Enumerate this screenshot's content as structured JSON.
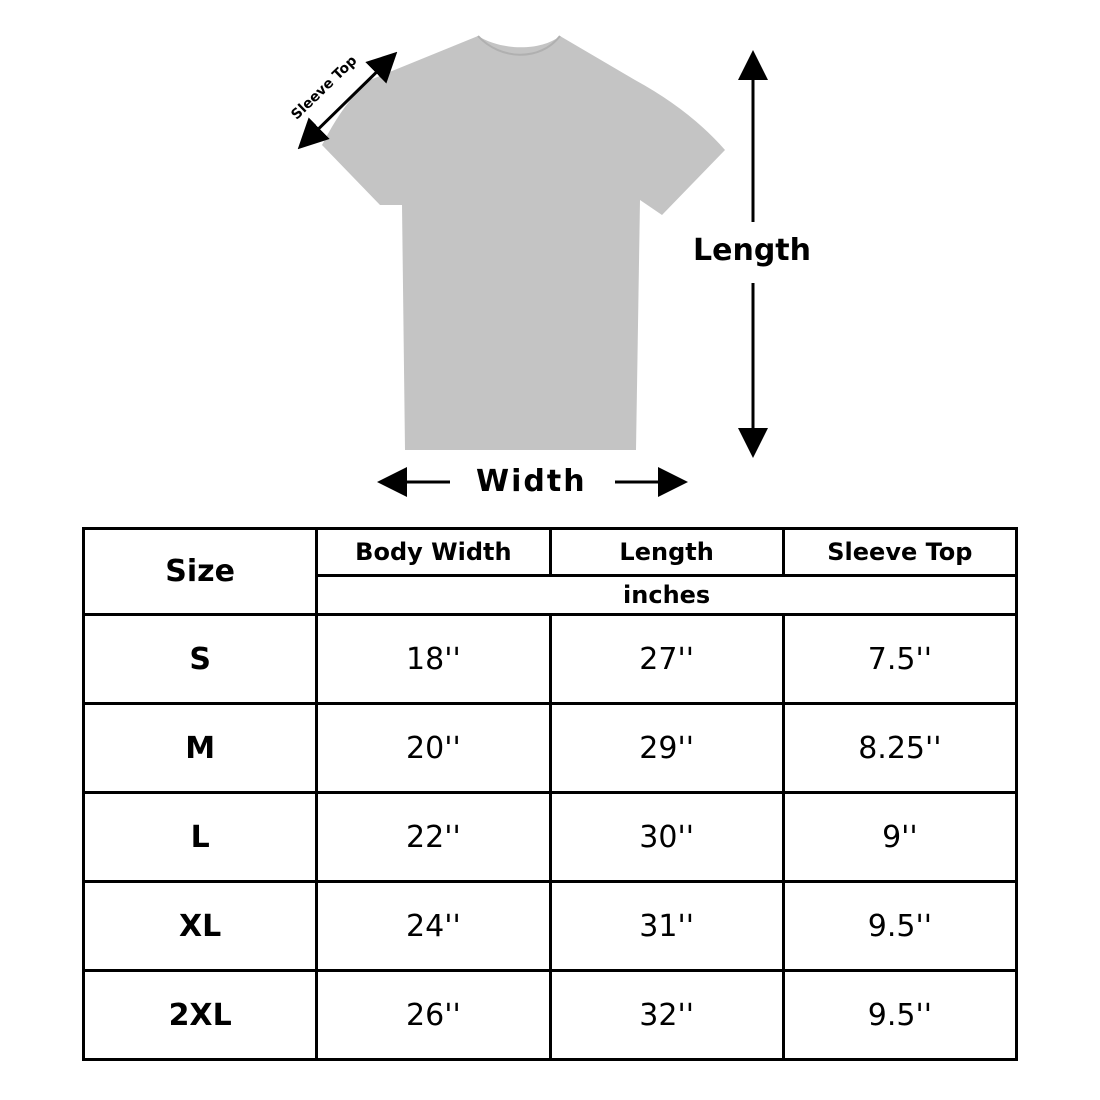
{
  "diagram": {
    "labels": {
      "sleeve_top": "Sleeve Top",
      "length": "Length",
      "width": "Width"
    },
    "shirt_color": "#c4c4c4"
  },
  "table": {
    "size_header": "Size",
    "columns": [
      "Body Width",
      "Length",
      "Sleeve Top"
    ],
    "unit": "inches",
    "rows": [
      {
        "size": "S",
        "body_width": "18''",
        "length": "27''",
        "sleeve_top": "7.5''"
      },
      {
        "size": "M",
        "body_width": "20''",
        "length": "29''",
        "sleeve_top": "8.25''"
      },
      {
        "size": "L",
        "body_width": "22''",
        "length": "30''",
        "sleeve_top": "9''"
      },
      {
        "size": "XL",
        "body_width": "24''",
        "length": "31''",
        "sleeve_top": "9.5''"
      },
      {
        "size": "2XL",
        "body_width": "26''",
        "length": "32''",
        "sleeve_top": "9.5''"
      }
    ]
  }
}
